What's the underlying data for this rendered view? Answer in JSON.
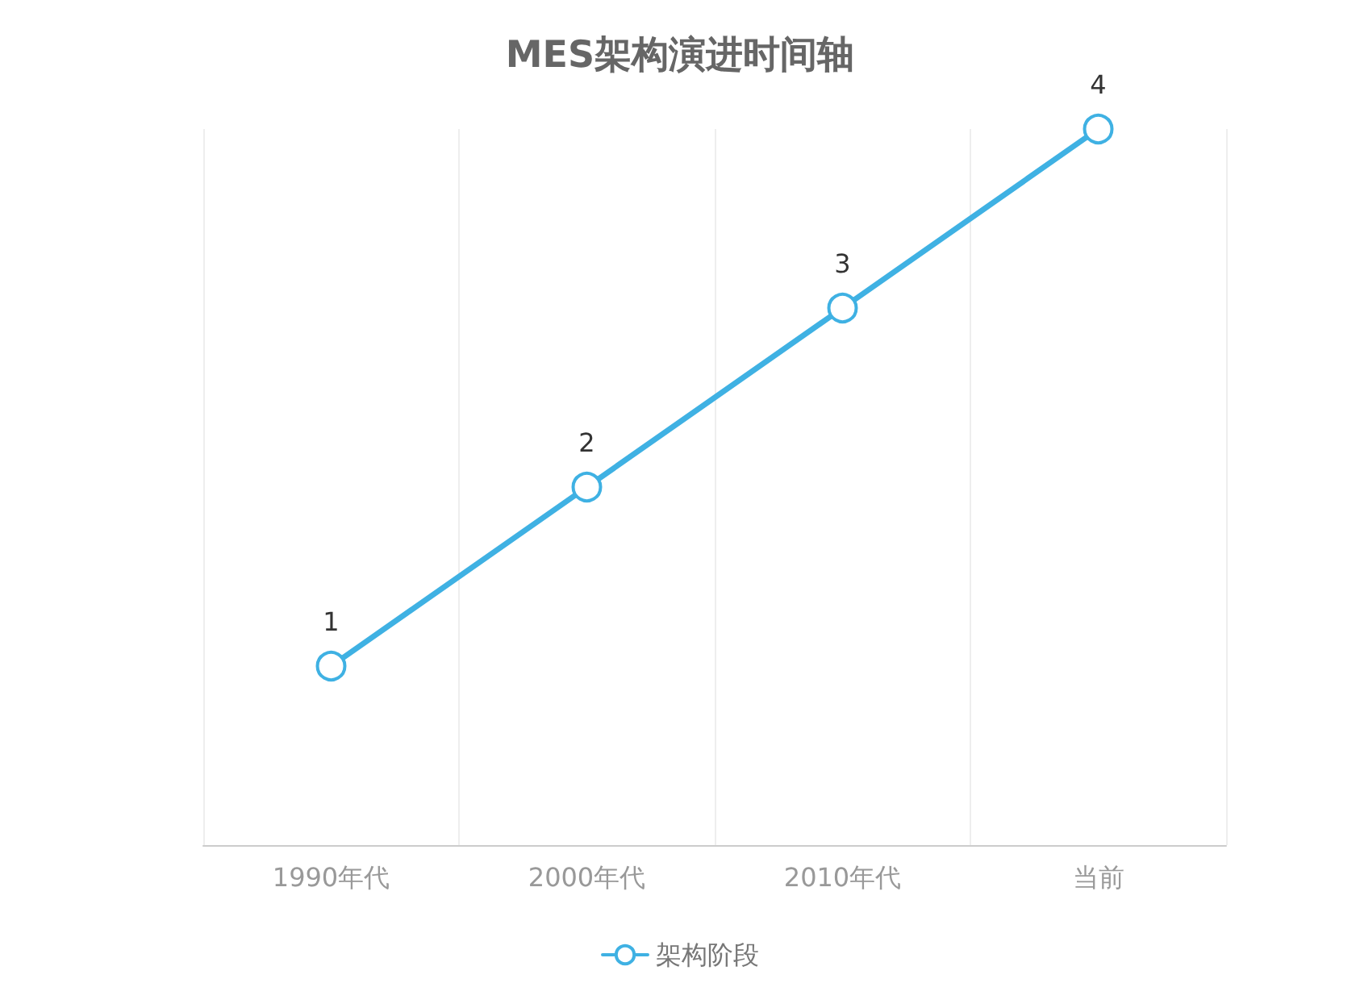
{
  "chart_data": {
    "type": "line",
    "title": "MES架构演进时间轴",
    "categories": [
      "1990年代",
      "2000年代",
      "2010年代",
      "当前"
    ],
    "series": [
      {
        "name": "架构阶段",
        "color": "#3fb1e3",
        "values": [
          1,
          2,
          3,
          4
        ]
      }
    ],
    "ylim": [
      0,
      4
    ],
    "tick_labels": "x",
    "grid": "x",
    "legend": "bottom",
    "marker": "circle",
    "line_style": "solid",
    "data_labels": true
  }
}
